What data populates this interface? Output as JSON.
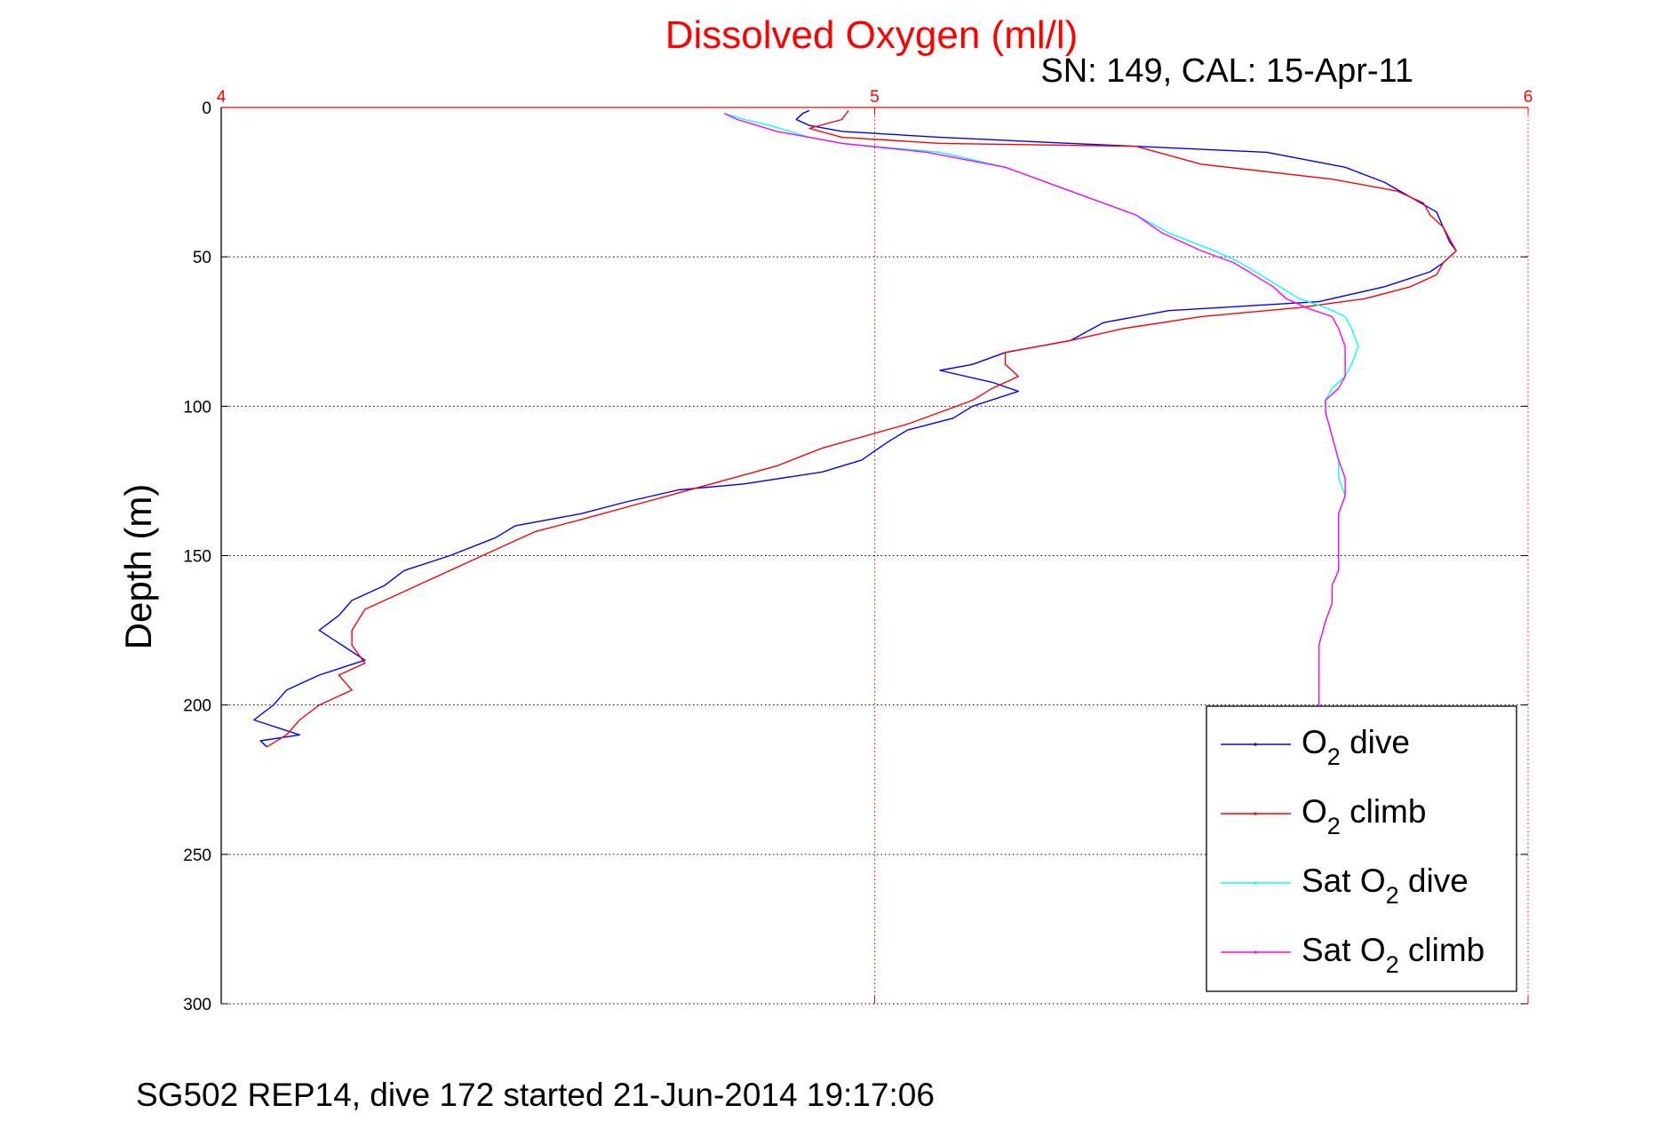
{
  "chart_data": {
    "type": "line",
    "title": "Dissolved Oxygen (ml/l)",
    "subtitle": "SN: 149, CAL: 15-Apr-11",
    "footer": "SG502 REP14, dive 172 started 21-Jun-2014 19:17:06",
    "xlabel": "",
    "ylabel": "Depth (m)",
    "xlim": [
      4,
      6
    ],
    "ylim": [
      0,
      300
    ],
    "y_reversed": true,
    "x_axis_position": "top",
    "xticks": [
      "4",
      "5",
      "6"
    ],
    "yticks": [
      "0",
      "50",
      "100",
      "150",
      "200",
      "250",
      "300"
    ],
    "grid": true,
    "legend_position": "bottom-right",
    "colors": {
      "title": "#ff0000",
      "x_axis": "#ff0000",
      "axis": "#000000"
    },
    "series": [
      {
        "name": "O2 dive",
        "legend_label": {
          "pre": "O",
          "sub": "2",
          "post": " dive"
        },
        "color": "#0000ff",
        "points": [
          [
            4.9,
            1
          ],
          [
            4.89,
            2
          ],
          [
            4.88,
            4
          ],
          [
            4.9,
            6
          ],
          [
            4.95,
            8
          ],
          [
            5.1,
            10
          ],
          [
            5.3,
            12
          ],
          [
            5.6,
            15
          ],
          [
            5.72,
            20
          ],
          [
            5.78,
            25
          ],
          [
            5.82,
            30
          ],
          [
            5.86,
            35
          ],
          [
            5.87,
            40
          ],
          [
            5.88,
            45
          ],
          [
            5.89,
            48
          ],
          [
            5.87,
            52
          ],
          [
            5.85,
            55
          ],
          [
            5.78,
            60
          ],
          [
            5.68,
            65
          ],
          [
            5.45,
            68
          ],
          [
            5.35,
            72
          ],
          [
            5.3,
            78
          ],
          [
            5.2,
            82
          ],
          [
            5.15,
            86
          ],
          [
            5.1,
            88
          ],
          [
            5.18,
            92
          ],
          [
            5.22,
            95
          ],
          [
            5.15,
            100
          ],
          [
            5.12,
            104
          ],
          [
            5.05,
            108
          ],
          [
            5.02,
            112
          ],
          [
            4.98,
            118
          ],
          [
            4.92,
            122
          ],
          [
            4.8,
            126
          ],
          [
            4.7,
            128
          ],
          [
            4.62,
            132
          ],
          [
            4.55,
            136
          ],
          [
            4.45,
            140
          ],
          [
            4.42,
            144
          ],
          [
            4.35,
            150
          ],
          [
            4.28,
            155
          ],
          [
            4.25,
            160
          ],
          [
            4.2,
            165
          ],
          [
            4.18,
            170
          ],
          [
            4.15,
            175
          ],
          [
            4.22,
            185
          ],
          [
            4.15,
            190
          ],
          [
            4.1,
            195
          ],
          [
            4.08,
            200
          ],
          [
            4.05,
            205
          ],
          [
            4.12,
            210
          ],
          [
            4.06,
            212
          ],
          [
            4.07,
            214
          ]
        ]
      },
      {
        "name": "O2 climb",
        "legend_label": {
          "pre": "O",
          "sub": "2",
          "post": " climb"
        },
        "color": "#ff0000",
        "points": [
          [
            4.07,
            214
          ],
          [
            4.1,
            210
          ],
          [
            4.12,
            205
          ],
          [
            4.15,
            200
          ],
          [
            4.2,
            195
          ],
          [
            4.18,
            190
          ],
          [
            4.22,
            186
          ],
          [
            4.2,
            180
          ],
          [
            4.2,
            175
          ],
          [
            4.22,
            168
          ],
          [
            4.28,
            162
          ],
          [
            4.35,
            155
          ],
          [
            4.42,
            148
          ],
          [
            4.48,
            142
          ],
          [
            4.55,
            138
          ],
          [
            4.65,
            132
          ],
          [
            4.75,
            126
          ],
          [
            4.85,
            120
          ],
          [
            4.92,
            114
          ],
          [
            5.05,
            106
          ],
          [
            5.1,
            102
          ],
          [
            5.15,
            98
          ],
          [
            5.18,
            94
          ],
          [
            5.22,
            90
          ],
          [
            5.2,
            86
          ],
          [
            5.2,
            82
          ],
          [
            5.3,
            78
          ],
          [
            5.38,
            74
          ],
          [
            5.5,
            70
          ],
          [
            5.65,
            67
          ],
          [
            5.75,
            64
          ],
          [
            5.82,
            60
          ],
          [
            5.86,
            56
          ],
          [
            5.87,
            52
          ],
          [
            5.89,
            48
          ],
          [
            5.88,
            44
          ],
          [
            5.87,
            40
          ],
          [
            5.85,
            36
          ],
          [
            5.84,
            32
          ],
          [
            5.8,
            28
          ],
          [
            5.7,
            24
          ],
          [
            5.5,
            19
          ],
          [
            5.45,
            16
          ],
          [
            5.4,
            13
          ],
          [
            5.1,
            12
          ],
          [
            4.95,
            10
          ],
          [
            4.9,
            7
          ],
          [
            4.95,
            4
          ],
          [
            4.96,
            1
          ]
        ]
      },
      {
        "name": "Sat O2 dive",
        "legend_label": {
          "pre": "Sat O",
          "sub": "2",
          "post": " dive"
        },
        "color": "#00ffff",
        "points": [
          [
            4.77,
            2
          ],
          [
            4.8,
            4
          ],
          [
            4.84,
            6
          ],
          [
            4.87,
            8
          ],
          [
            4.9,
            10
          ],
          [
            4.95,
            12
          ],
          [
            5.1,
            15
          ],
          [
            5.2,
            20
          ],
          [
            5.3,
            28
          ],
          [
            5.4,
            36
          ],
          [
            5.45,
            42
          ],
          [
            5.52,
            48
          ],
          [
            5.56,
            52
          ],
          [
            5.59,
            56
          ],
          [
            5.62,
            60
          ],
          [
            5.65,
            64
          ],
          [
            5.69,
            67
          ],
          [
            5.72,
            70
          ],
          [
            5.73,
            74
          ],
          [
            5.74,
            80
          ],
          [
            5.73,
            86
          ],
          [
            5.72,
            90
          ],
          [
            5.7,
            94
          ],
          [
            5.69,
            98
          ],
          [
            5.69,
            102
          ],
          [
            5.7,
            110
          ],
          [
            5.71,
            118
          ],
          [
            5.71,
            124
          ],
          [
            5.72,
            130
          ],
          [
            5.71,
            136
          ],
          [
            5.71,
            142
          ],
          [
            5.71,
            148
          ],
          [
            5.71,
            155
          ],
          [
            5.7,
            160
          ],
          [
            5.7,
            166
          ],
          [
            5.69,
            172
          ],
          [
            5.68,
            180
          ],
          [
            5.68,
            188
          ],
          [
            5.68,
            195
          ],
          [
            5.68,
            200
          ]
        ]
      },
      {
        "name": "Sat O2 climb",
        "legend_label": {
          "pre": "Sat O",
          "sub": "2",
          "post": " climb"
        },
        "color": "#ff00ff",
        "points": [
          [
            5.68,
            200
          ],
          [
            5.68,
            195
          ],
          [
            5.68,
            188
          ],
          [
            5.68,
            180
          ],
          [
            5.69,
            172
          ],
          [
            5.7,
            166
          ],
          [
            5.7,
            160
          ],
          [
            5.71,
            155
          ],
          [
            5.71,
            148
          ],
          [
            5.71,
            142
          ],
          [
            5.71,
            136
          ],
          [
            5.72,
            130
          ],
          [
            5.72,
            124
          ],
          [
            5.71,
            118
          ],
          [
            5.7,
            110
          ],
          [
            5.69,
            102
          ],
          [
            5.69,
            98
          ],
          [
            5.71,
            94
          ],
          [
            5.72,
            90
          ],
          [
            5.72,
            86
          ],
          [
            5.72,
            80
          ],
          [
            5.71,
            74
          ],
          [
            5.7,
            70
          ],
          [
            5.66,
            67
          ],
          [
            5.63,
            64
          ],
          [
            5.61,
            60
          ],
          [
            5.58,
            56
          ],
          [
            5.55,
            52
          ],
          [
            5.5,
            48
          ],
          [
            5.44,
            42
          ],
          [
            5.4,
            36
          ],
          [
            5.3,
            28
          ],
          [
            5.2,
            20
          ],
          [
            5.08,
            15
          ],
          [
            4.95,
            12
          ],
          [
            4.9,
            10
          ],
          [
            4.85,
            8
          ],
          [
            4.82,
            6
          ],
          [
            4.79,
            4
          ],
          [
            4.77,
            2
          ]
        ]
      }
    ]
  }
}
